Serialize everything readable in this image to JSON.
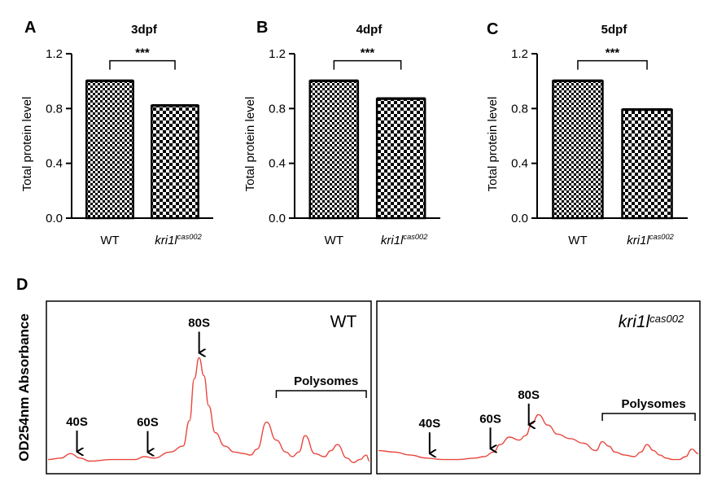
{
  "chart_data": [
    {
      "panel": "A",
      "type": "bar",
      "title": "3dpf",
      "ylabel": "Total protein level",
      "ylim": [
        0,
        1.2
      ],
      "yticks": [
        "0.0",
        "0.4",
        "0.8",
        "1.2"
      ],
      "categories": [
        {
          "main": "WT",
          "sup": ""
        },
        {
          "main": "kri1l",
          "sup": "cas002"
        }
      ],
      "values": [
        1.0,
        0.82
      ],
      "significance": "***",
      "grid": false
    },
    {
      "panel": "B",
      "type": "bar",
      "title": "4dpf",
      "ylabel": "Total protein level",
      "ylim": [
        0,
        1.2
      ],
      "yticks": [
        "0.0",
        "0.4",
        "0.8",
        "1.2"
      ],
      "categories": [
        {
          "main": "WT",
          "sup": ""
        },
        {
          "main": "kri1l",
          "sup": "cas002"
        }
      ],
      "values": [
        1.0,
        0.87
      ],
      "significance": "***",
      "grid": false
    },
    {
      "panel": "C",
      "type": "bar",
      "title": "5dpf",
      "ylabel": "Total protein level",
      "ylim": [
        0,
        1.2
      ],
      "yticks": [
        "0.0",
        "0.4",
        "0.8",
        "1.2"
      ],
      "categories": [
        {
          "main": "WT",
          "sup": ""
        },
        {
          "main": "kri1l",
          "sup": "cas002"
        }
      ],
      "values": [
        1.0,
        0.79
      ],
      "significance": "***",
      "grid": false
    },
    {
      "panel": "D",
      "type": "line",
      "ylabel": "OD254nm Absorbance",
      "line_color": "#e8483f",
      "profiles": [
        {
          "label": {
            "main": "WT",
            "sup": ""
          },
          "label_style": "plain",
          "x": [
            0,
            0.04,
            0.07,
            0.1,
            0.13,
            0.2,
            0.27,
            0.3,
            0.33,
            0.38,
            0.42,
            0.44,
            0.455,
            0.47,
            0.485,
            0.5,
            0.52,
            0.55,
            0.58,
            0.61,
            0.63,
            0.65,
            0.68,
            0.71,
            0.74,
            0.76,
            0.78,
            0.8,
            0.83,
            0.86,
            0.88,
            0.9,
            0.93,
            0.95,
            0.97,
            0.99,
            1.0
          ],
          "y": [
            0.04,
            0.05,
            0.08,
            0.05,
            0.03,
            0.04,
            0.04,
            0.06,
            0.05,
            0.09,
            0.13,
            0.3,
            0.58,
            0.72,
            0.6,
            0.4,
            0.22,
            0.13,
            0.09,
            0.08,
            0.07,
            0.11,
            0.29,
            0.17,
            0.09,
            0.06,
            0.09,
            0.2,
            0.08,
            0.06,
            0.1,
            0.14,
            0.05,
            0.02,
            0.04,
            0.07,
            0.03
          ],
          "peaks": [
            {
              "label": "40S",
              "x": 0.09
            },
            {
              "label": "60S",
              "x": 0.31
            },
            {
              "label": "80S",
              "x": 0.47
            }
          ],
          "bracket": {
            "label": "Polysomes",
            "x0": 0.71,
            "x1": 0.99
          }
        },
        {
          "label": {
            "main": "kri1l",
            "sup": "cas002"
          },
          "label_style": "italic",
          "x": [
            0,
            0.05,
            0.1,
            0.15,
            0.2,
            0.25,
            0.3,
            0.33,
            0.36,
            0.38,
            0.41,
            0.44,
            0.46,
            0.48,
            0.5,
            0.53,
            0.56,
            0.6,
            0.64,
            0.68,
            0.7,
            0.72,
            0.74,
            0.77,
            0.8,
            0.82,
            0.84,
            0.86,
            0.88,
            0.9,
            0.92,
            0.94,
            0.96,
            0.98,
            1.0
          ],
          "y": [
            0.1,
            0.09,
            0.07,
            0.05,
            0.04,
            0.04,
            0.05,
            0.06,
            0.09,
            0.14,
            0.19,
            0.17,
            0.2,
            0.28,
            0.34,
            0.27,
            0.21,
            0.18,
            0.15,
            0.1,
            0.16,
            0.13,
            0.09,
            0.07,
            0.06,
            0.09,
            0.14,
            0.1,
            0.07,
            0.05,
            0.04,
            0.04,
            0.06,
            0.11,
            0.08
          ],
          "peaks": [
            {
              "label": "40S",
              "x": 0.16
            },
            {
              "label": "60S",
              "x": 0.35
            },
            {
              "label": "80S",
              "x": 0.47
            }
          ],
          "bracket": {
            "label": "Polysomes",
            "x0": 0.7,
            "x1": 0.99
          }
        }
      ]
    }
  ]
}
